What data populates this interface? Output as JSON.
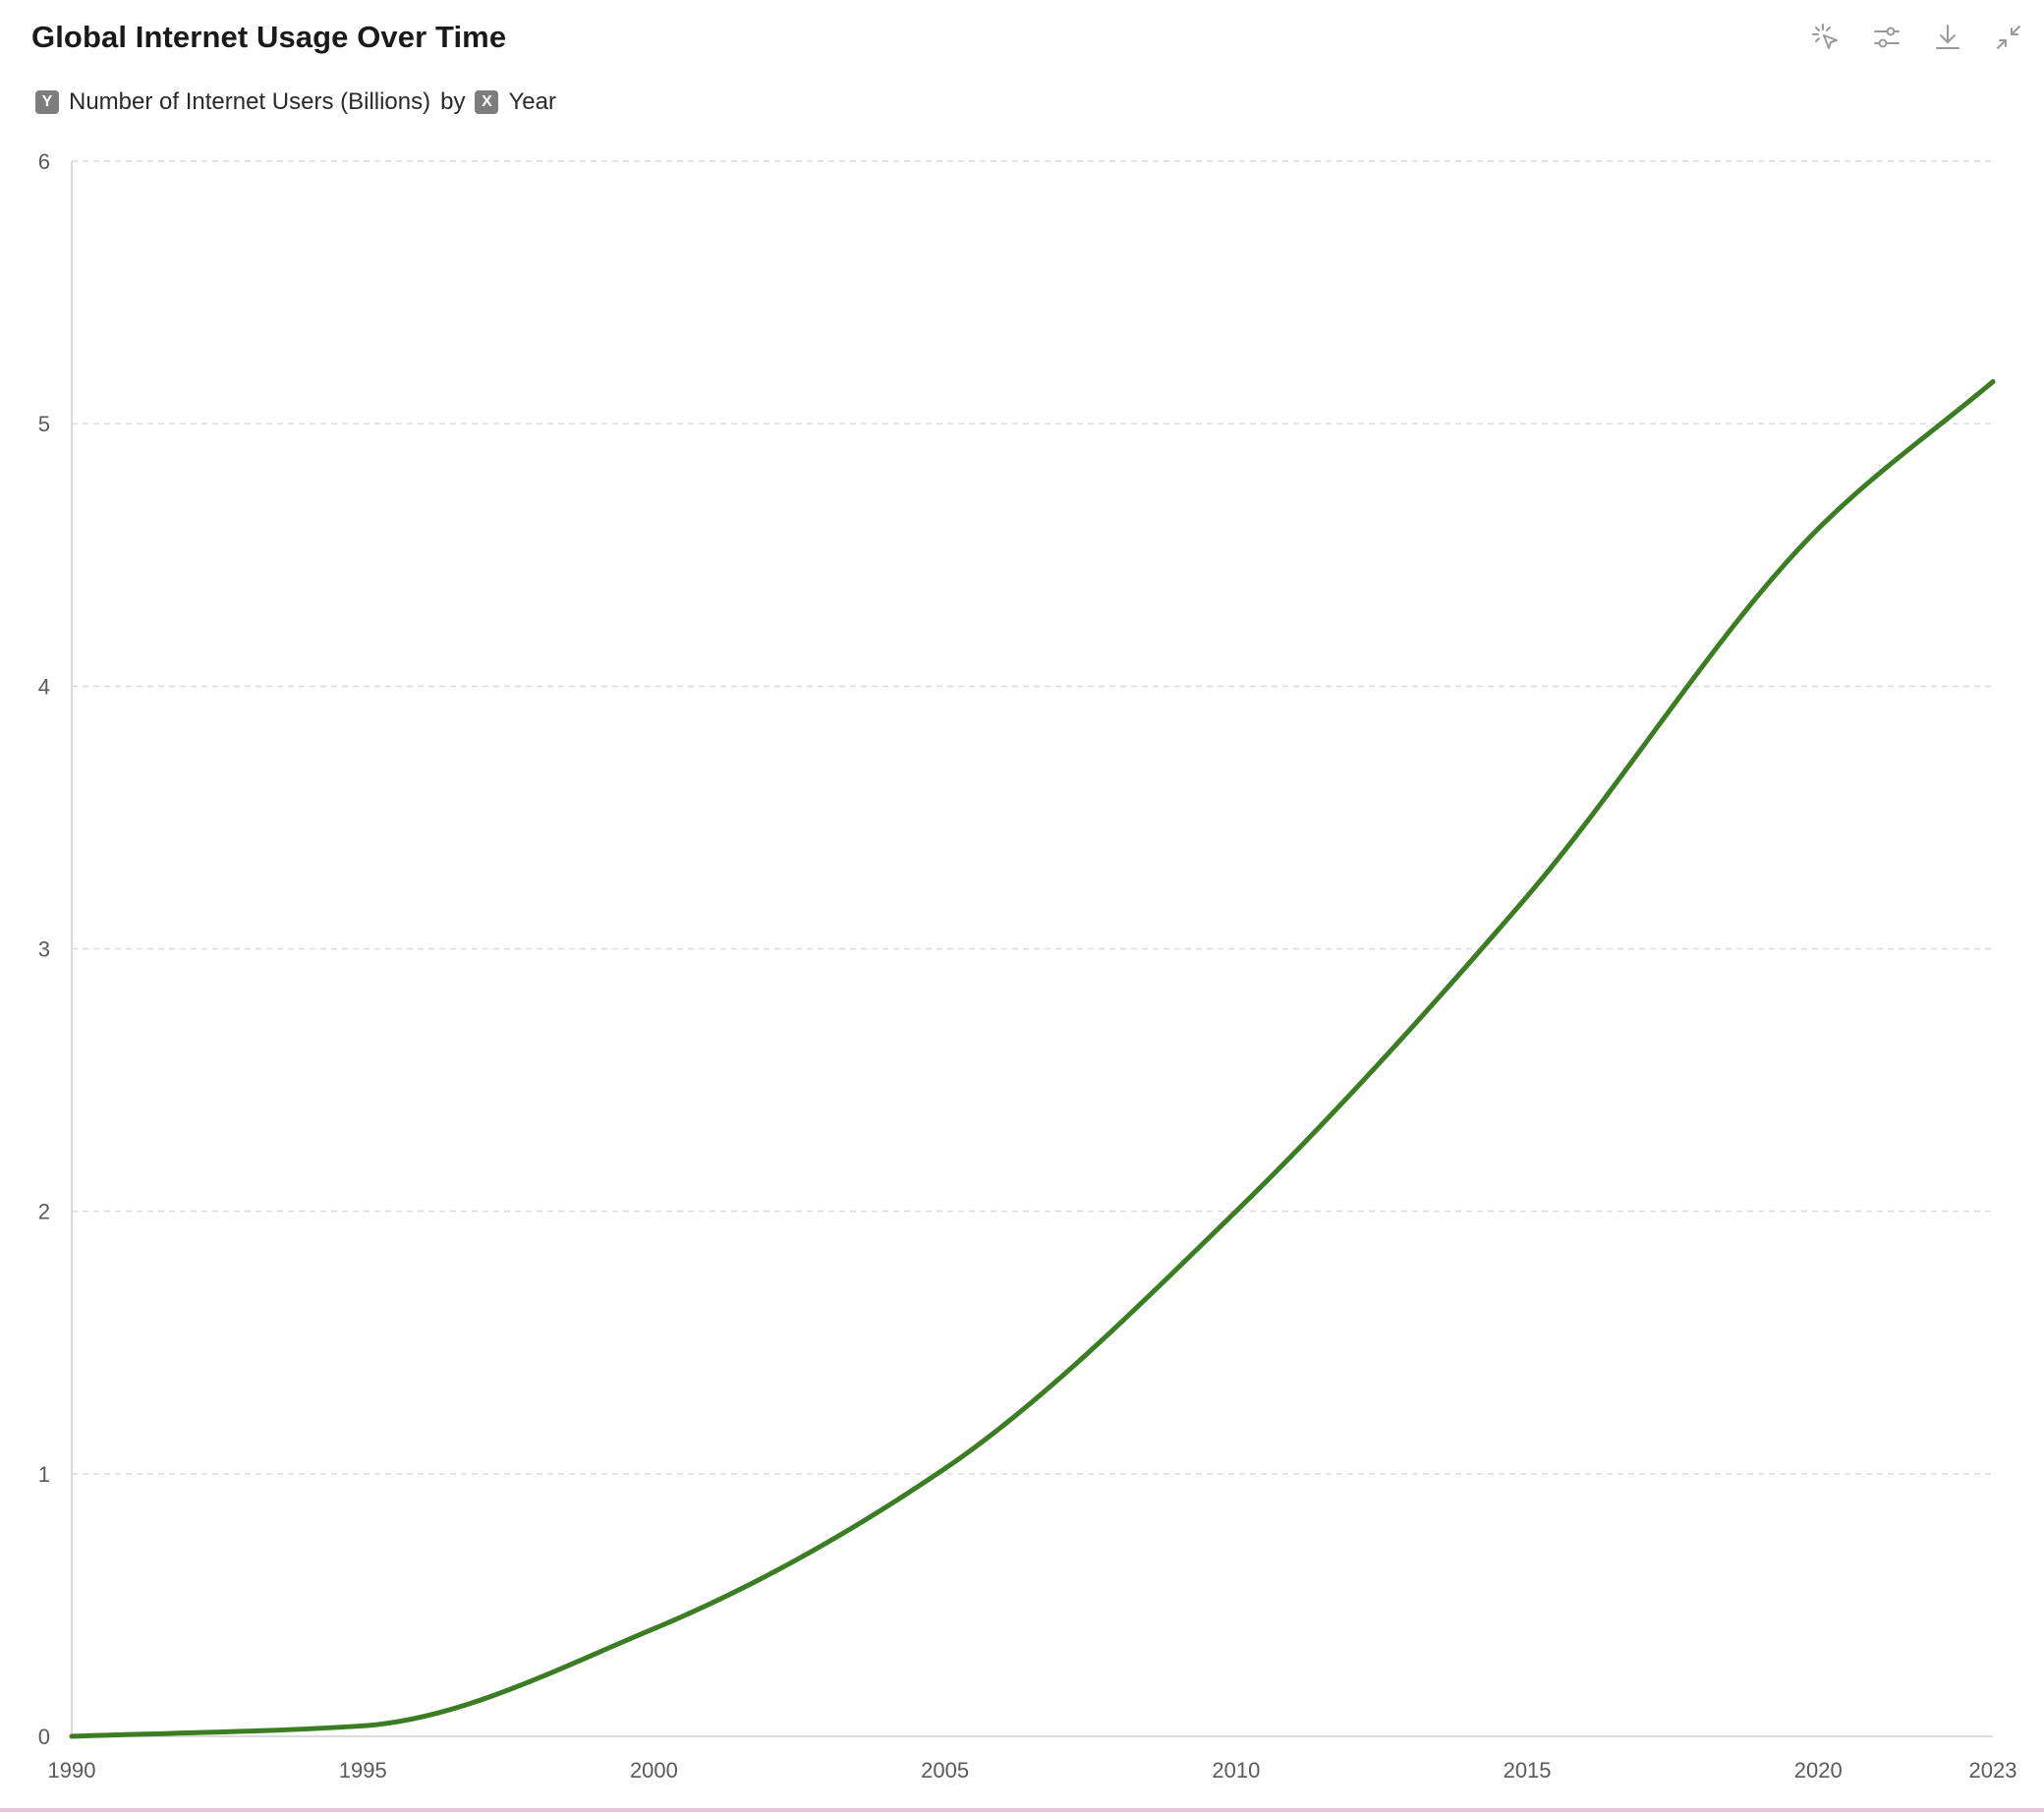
{
  "title": "Global Internet Usage Over Time",
  "subtitle": {
    "y_badge": "Y",
    "y_field": "Number of Internet Users (Billions)",
    "connector": "by",
    "x_badge": "X",
    "x_field": "Year"
  },
  "toolbar": {
    "icons": [
      "select-pointer-icon",
      "sliders-icon",
      "download-icon",
      "collapse-icon"
    ],
    "icon_color": "#9a9a9a"
  },
  "chart_data": {
    "type": "line",
    "title": "Global Internet Usage Over Time",
    "xlabel": "Year",
    "ylabel": "Number of Internet Users (Billions)",
    "xlim": [
      1990,
      2023
    ],
    "ylim": [
      0,
      6
    ],
    "x_ticks": [
      "1990",
      "1995",
      "2000",
      "2005",
      "2010",
      "2015",
      "2020",
      "2023"
    ],
    "y_ticks": [
      "0",
      "1",
      "2",
      "3",
      "4",
      "5",
      "6"
    ],
    "grid": true,
    "line_color": "#3a7d22",
    "series": [
      {
        "x": [
          1990,
          1995,
          2000,
          2005,
          2010,
          2015,
          2020,
          2023
        ],
        "values": [
          0.0,
          0.04,
          0.41,
          1.02,
          2.0,
          3.2,
          4.6,
          5.16
        ]
      }
    ]
  }
}
